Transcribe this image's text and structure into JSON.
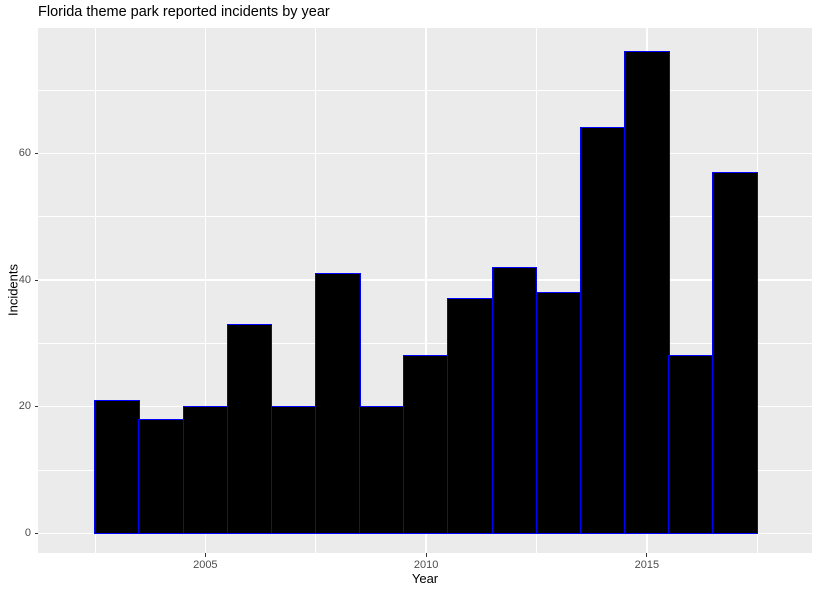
{
  "window": {
    "background": "#ffffff"
  },
  "chart_data": {
    "type": "bar",
    "title": "Florida theme park reported incidents by year",
    "xlabel": "Year",
    "ylabel": "Incidents",
    "categories": [
      2003,
      2004,
      2005,
      2006,
      2007,
      2008,
      2009,
      2010,
      2011,
      2012,
      2013,
      2014,
      2015,
      2016,
      2017
    ],
    "values": [
      21,
      18,
      20,
      33,
      20,
      41,
      20,
      28,
      37,
      42,
      38,
      64,
      76,
      28,
      57
    ],
    "bar_width_x_units": 1,
    "xlim": [
      2001.21,
      2018.74
    ],
    "ylim": [
      -3.11,
      79.8
    ],
    "x_ticks": [
      {
        "value": 2005,
        "label": "2005"
      },
      {
        "value": 2010,
        "label": "2010"
      },
      {
        "value": 2015,
        "label": "2015"
      }
    ],
    "y_ticks": [
      {
        "value": 0,
        "label": "0"
      },
      {
        "value": 20,
        "label": "20"
      },
      {
        "value": 40,
        "label": "40"
      },
      {
        "value": 60,
        "label": "60"
      }
    ],
    "x_minor_breaks": [
      2002.5,
      2007.5,
      2012.5,
      2017.5
    ],
    "y_minor_breaks": [
      10,
      30,
      50,
      70
    ],
    "grid": "on",
    "legend_position": "none",
    "style": {
      "panel_background": "#ebebeb",
      "grid_color": "#ffffff",
      "bar_fill": "#000000",
      "bar_stroke": "#0000ff",
      "tick_mark_color": "#333333",
      "tick_label_color": "#4d4d4d",
      "title_color": "#000000",
      "axis_title_color": "#000000"
    }
  }
}
